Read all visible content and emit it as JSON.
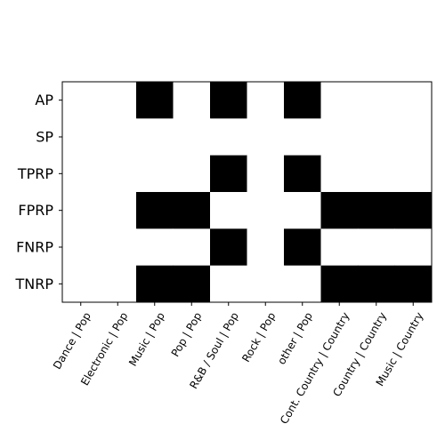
{
  "chart_data": {
    "type": "heatmap",
    "title": "",
    "xlabel": "",
    "ylabel": "",
    "x_categories": [
      "Dance | Pop",
      "Electronic | Pop",
      "Music | Pop",
      "Pop | Pop",
      "R&B / Soul | Pop",
      "Rock | Pop",
      "other | Pop",
      "Cont. Country | Country",
      "Country | Country",
      "Music | Country"
    ],
    "y_categories": [
      "AP",
      "SP",
      "TPRP",
      "FPRP",
      "FNRP",
      "TNRP"
    ],
    "values": [
      [
        0,
        0,
        1,
        0,
        1,
        0,
        1,
        0,
        0,
        0
      ],
      [
        0,
        0,
        0,
        0,
        0,
        0,
        0,
        0,
        0,
        0
      ],
      [
        0,
        0,
        0,
        0,
        1,
        0,
        1,
        0,
        0,
        0
      ],
      [
        0,
        0,
        1,
        1,
        0,
        0,
        0,
        1,
        1,
        1
      ],
      [
        0,
        0,
        0,
        0,
        1,
        0,
        1,
        0,
        0,
        0
      ],
      [
        0,
        0,
        1,
        1,
        0,
        0,
        0,
        1,
        1,
        1
      ]
    ],
    "colormap": {
      "0": "#ffffff",
      "1": "#000000"
    },
    "grid": false,
    "legend": "none"
  }
}
